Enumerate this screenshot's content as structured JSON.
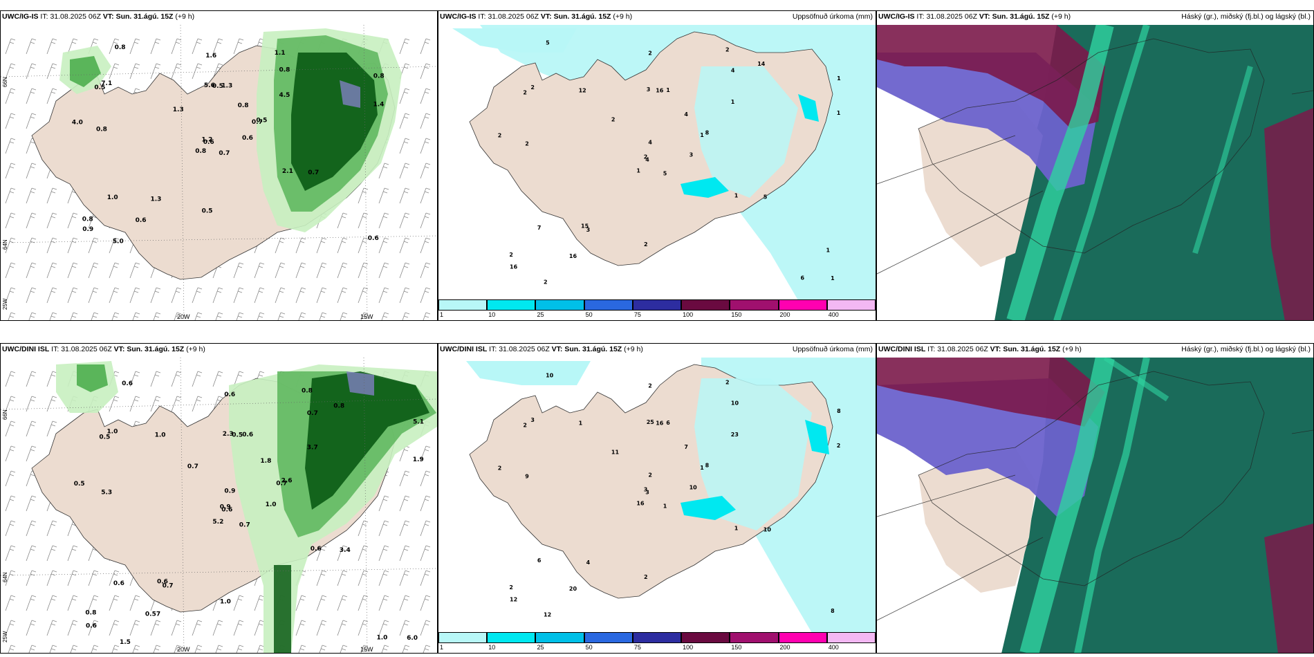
{
  "rows": [
    {
      "model": "UWC/IG-IS",
      "it_label": "IT:",
      "it_value": "31.08.2025 06Z",
      "vt_label": "VT:",
      "vt_value": "Sun. 31.ágú. 15Z",
      "lead": "(+9 h)",
      "wind_values": [
        "0.7",
        "0.5",
        "0.6",
        "0.8",
        "0.7",
        "1.3",
        "1.1",
        "1.3",
        "0.8",
        "0.6",
        "0.8",
        "0.6",
        "0.8",
        "0.8",
        "0.8",
        "4.5",
        "5.0",
        "5.6",
        "0.8",
        "1.0",
        "1.3",
        "0.9",
        "0.6",
        "0.5",
        "0.5",
        "0.7",
        "7.1",
        "1.6",
        "4.0",
        "2.1",
        "1.4",
        "1.2",
        "0.5"
      ],
      "precip_values": [
        "5",
        "2",
        "4",
        "2",
        "1",
        "3",
        "2",
        "1",
        "4",
        "3",
        "5",
        "1",
        "2",
        "1",
        "1",
        "1",
        "2",
        "3",
        "4",
        "7",
        "2",
        "16",
        "16",
        "16",
        "8",
        "5",
        "2",
        "2",
        "2",
        "1",
        "1",
        "2",
        "2",
        "4",
        "12",
        "14",
        "15",
        "6",
        "1"
      ]
    },
    {
      "model": "UWC/DINI ISL",
      "it_label": "IT:",
      "it_value": "31.08.2025 06Z",
      "vt_label": "VT:",
      "vt_value": "Sun. 31.ágú. 15Z",
      "lead": "(+9 h)",
      "wind_values": [
        "0.7",
        "0.5",
        "0.6",
        "0.8",
        "0.7",
        "0.7",
        "0.8",
        "0.6",
        "0.7",
        "1.0",
        "0.6",
        "6.0",
        "5.3",
        "5.1",
        "5.2",
        "3.7",
        "1.5",
        "2.3",
        "1.8",
        "0.6",
        "0.7",
        "0.6",
        "0.57",
        "0.5",
        "2.6",
        "3.4",
        "1.0",
        "0.6",
        "0.5",
        "0.6",
        "1.9",
        "0.9",
        "1.0",
        "0.9",
        "1.0",
        "0.8",
        "0.6",
        "1.0"
      ],
      "precip_values": [
        "1",
        "2",
        "3",
        "2",
        "1",
        "4",
        "2",
        "6",
        "10",
        "10",
        "10",
        "8",
        "9",
        "8",
        "16",
        "23",
        "12",
        "25",
        "7",
        "6",
        "11",
        "12",
        "20",
        "16",
        "8",
        "10",
        "3",
        "2",
        "2",
        "1",
        "2",
        "3",
        "2",
        "2",
        "1"
      ]
    }
  ],
  "precip_title": "Uppsöfnuð úrkoma (mm)",
  "cloud_title": "Háský (gr.), miðský (fj.bl.) og lágský (bl.)",
  "colorbar": {
    "labels": [
      "1",
      "10",
      "25",
      "50",
      "75",
      "100",
      "150",
      "200",
      "400"
    ],
    "colors": [
      "#b8f7f7",
      "#00e8f0",
      "#00c0e8",
      "#2a68e0",
      "#2d2da0",
      "#6a0a40",
      "#a0106e",
      "#ff00b0",
      "#f3b8f3"
    ]
  },
  "axis": {
    "lon_20": "20W",
    "lon_15": "15W",
    "lat_66": "66N",
    "lat_64": "64N",
    "lon_25": "25W"
  },
  "colors": {
    "land": "#ecdcd0",
    "precip_light": "#b8f7f7",
    "green_light": "#c8f0c0",
    "green_mid": "#5ab55a",
    "green_dark": "#0a5a14",
    "cloud_high": "#1a6b5a",
    "cloud_mid": "#6b62cc",
    "cloud_low": "#7b1a4a",
    "cloud_green": "#2fd3a0"
  }
}
